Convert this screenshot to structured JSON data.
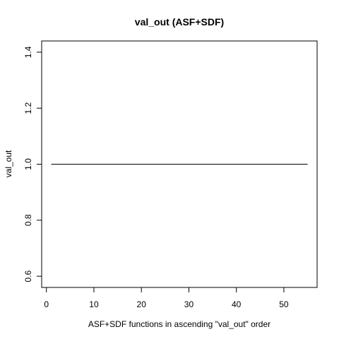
{
  "chart_data": {
    "type": "line",
    "title": "val_out (ASF+SDF)",
    "xlabel": "ASF+SDF functions in ascending \"val_out\" order",
    "ylabel": "val_out",
    "xlim": [
      -1,
      57
    ],
    "ylim": [
      0.56,
      1.44
    ],
    "x_ticks": [
      0,
      10,
      20,
      30,
      40,
      50
    ],
    "y_ticks": [
      0.6,
      0.8,
      1.0,
      1.2,
      1.4
    ],
    "x_tick_labels": [
      "0",
      "10",
      "20",
      "30",
      "40",
      "50"
    ],
    "y_tick_labels": [
      "0.6",
      "0.8",
      "1.0",
      "1.2",
      "1.4"
    ],
    "grid": false,
    "series": [
      {
        "x": [
          1,
          55
        ],
        "y": [
          1.0,
          1.0
        ],
        "color": "#000000"
      }
    ]
  }
}
